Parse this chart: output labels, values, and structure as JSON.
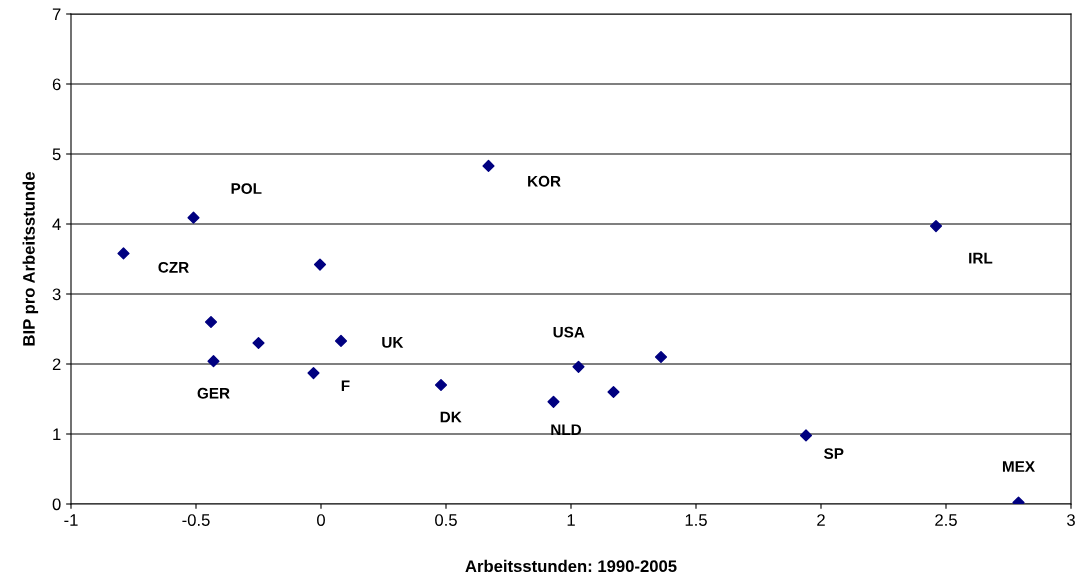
{
  "chart_data": {
    "type": "scatter",
    "xlabel": "Arbeitsstunden: 1990-2005",
    "ylabel": "BIP pro Arbeitsstunde",
    "series": [
      {
        "color": "#000080",
        "x": [
          -0.79,
          -0.51,
          -0.004,
          0.67,
          2.46,
          -0.44,
          -0.43,
          -0.25,
          0.08,
          -0.03,
          0.48,
          1.03,
          0.93,
          1.17,
          1.36,
          1.94,
          2.79
        ],
        "values": [
          3.58,
          4.09,
          3.42,
          4.83,
          3.97,
          2.6,
          2.04,
          2.3,
          2.33,
          1.87,
          1.7,
          1.96,
          1.46,
          1.6,
          2.1,
          0.98,
          0.02
        ]
      }
    ],
    "annotations": [
      {
        "text": "CZR",
        "x": -0.79,
        "y": 3.58
      },
      {
        "text": "POL",
        "x": -0.51,
        "y": 4.09
      },
      {
        "text": "KOR",
        "x": 0.67,
        "y": 4.83
      },
      {
        "text": "IRL",
        "x": 2.46,
        "y": 3.97
      },
      {
        "text": "GER",
        "x": -0.43,
        "y": 2.04
      },
      {
        "text": "UK",
        "x": 0.08,
        "y": 2.33
      },
      {
        "text": "F",
        "x": -0.03,
        "y": 1.87
      },
      {
        "text": "DK",
        "x": 0.48,
        "y": 1.7
      },
      {
        "text": "USA",
        "x": 1.03,
        "y": 1.96
      },
      {
        "text": "NLD",
        "x": 0.93,
        "y": 1.46
      },
      {
        "text": "SP",
        "x": 1.94,
        "y": 0.98
      },
      {
        "text": "MEX",
        "x": 2.79,
        "y": 0.02
      }
    ],
    "xlim": [
      -1,
      3
    ],
    "xticks": [
      -1,
      -0.5,
      0,
      0.5,
      1,
      1.5,
      2,
      2.5,
      3
    ],
    "ylim": [
      0,
      7
    ],
    "yticks": [
      0,
      1,
      2,
      3,
      4,
      5,
      6,
      7
    ],
    "grid": "y",
    "marker": "diamond",
    "legend": false
  }
}
